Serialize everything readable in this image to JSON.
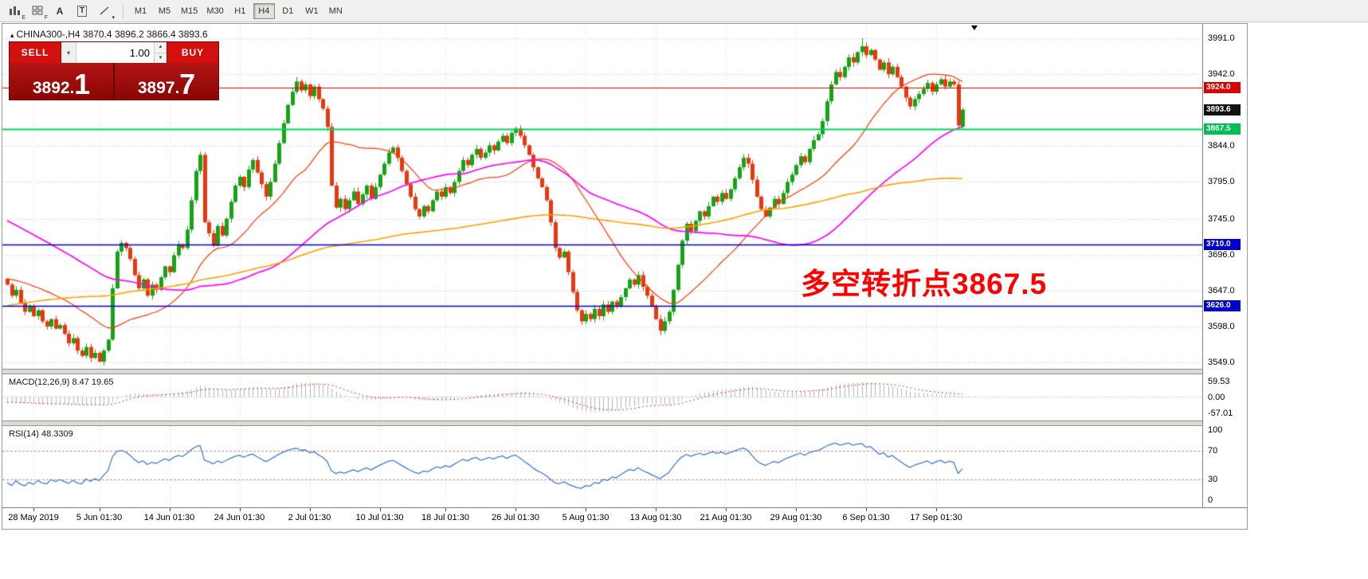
{
  "toolbar": {
    "icons": [
      {
        "name": "charts-icon",
        "char": "",
        "sub": "E"
      },
      {
        "name": "tile-windows-icon",
        "char": "",
        "sub": "F"
      },
      {
        "name": "cursor-tool-icon",
        "char": "A",
        "sub": ""
      },
      {
        "name": "text-tool-icon",
        "char": "T",
        "sub": ""
      },
      {
        "name": "drawing-tools-icon",
        "char": "",
        "sub": "▾"
      }
    ],
    "timeframes": [
      {
        "label": "M1",
        "active": false
      },
      {
        "label": "M5",
        "active": false
      },
      {
        "label": "M15",
        "active": false
      },
      {
        "label": "M30",
        "active": false
      },
      {
        "label": "H1",
        "active": false
      },
      {
        "label": "H4",
        "active": true
      },
      {
        "label": "D1",
        "active": false
      },
      {
        "label": "W1",
        "active": false
      },
      {
        "label": "MN",
        "active": false
      }
    ]
  },
  "legend": {
    "collapse_icon": "▴",
    "symbol": "CHINA300-,H4",
    "ohlc": "3870.4 3896.2 3866.4 3893.6"
  },
  "trade_panel": {
    "sell_label": "SELL",
    "buy_label": "BUY",
    "volume": "1.00",
    "caret_down": "▾",
    "spin_up": "▲",
    "spin_down": "▼",
    "dot": ".",
    "sell_price_base": "3892",
    "sell_price_big": "1",
    "buy_price_base": "3897",
    "buy_price_big": "7"
  },
  "annotation": {
    "text": "多空转折点3867.5"
  },
  "price_axis": {
    "ticks": [
      {
        "label": "3991.0",
        "price": 3991
      },
      {
        "label": "3942.0",
        "price": 3942
      },
      {
        "label": "3844.0",
        "price": 3844
      },
      {
        "label": "3795.0",
        "price": 3795
      },
      {
        "label": "3745.0",
        "price": 3745
      },
      {
        "label": "3696.0",
        "price": 3696
      },
      {
        "label": "3647.0",
        "price": 3647
      },
      {
        "label": "3598.0",
        "price": 3598
      },
      {
        "label": "3549.0",
        "price": 3549
      }
    ],
    "chips": [
      {
        "label": "3924.0",
        "price": 3924,
        "bg": "#dd0000",
        "fg": "#ffffff",
        "line": "#dd0000",
        "lw": 1.2
      },
      {
        "label": "3893.6",
        "price": 3893.6,
        "bg": "#111111",
        "fg": "#ffffff",
        "line": null,
        "lw": 0
      },
      {
        "label": "3867.5",
        "price": 3867.5,
        "bg": "#00bf55",
        "fg": "#ffffff",
        "line": "#00d45e",
        "lw": 2
      },
      {
        "label": "3710.0",
        "price": 3710,
        "bg": "#0000cc",
        "fg": "#ffffff",
        "line": "#0000cc",
        "lw": 1.6
      },
      {
        "label": "3626.0",
        "price": 3626,
        "bg": "#0000cc",
        "fg": "#ffffff",
        "line": "#0000cc",
        "lw": 1.6
      }
    ]
  },
  "macd": {
    "title": "MACD(12,26,9) 8.47 19.65",
    "axis": [
      {
        "label": "59.53",
        "v": 59.53
      },
      {
        "label": "0.00",
        "v": 0
      },
      {
        "label": "-57.01",
        "v": -57.01
      }
    ],
    "range": {
      "max": 59.53,
      "min": -57.01
    }
  },
  "rsi": {
    "title": "RSI(14) 48.3309",
    "axis": [
      {
        "label": "100",
        "v": 100
      },
      {
        "label": "70",
        "v": 70
      },
      {
        "label": "30",
        "v": 30
      },
      {
        "label": "0",
        "v": 0
      }
    ],
    "levels": [
      70,
      30
    ]
  },
  "chart_data": {
    "type": "candlestick",
    "symbol": "CHINA300-",
    "timeframe": "H4",
    "ohlc_current": {
      "open": 3870.4,
      "high": 3896.2,
      "low": 3866.4,
      "close": 3893.6
    },
    "ylim": [
      3549,
      3991
    ],
    "levels": [
      3924.0,
      3867.5,
      3710.0,
      3626.0
    ],
    "dates": [
      {
        "label": "28 May 2019",
        "i": 6
      },
      {
        "label": "5 Jun 01:30",
        "i": 21
      },
      {
        "label": "14 Jun 01:30",
        "i": 37
      },
      {
        "label": "24 Jun 01:30",
        "i": 53
      },
      {
        "label": "2 Jul 01:30",
        "i": 69
      },
      {
        "label": "10 Jul 01:30",
        "i": 85
      },
      {
        "label": "18 Jul 01:30",
        "i": 100
      },
      {
        "label": "26 Jul 01:30",
        "i": 116
      },
      {
        "label": "5 Aug 01:30",
        "i": 132
      },
      {
        "label": "13 Aug 01:30",
        "i": 148
      },
      {
        "label": "21 Aug 01:30",
        "i": 164
      },
      {
        "label": "29 Aug 01:30",
        "i": 180
      },
      {
        "label": "6 Sep 01:30",
        "i": 196
      },
      {
        "label": "17 Sep 01:30",
        "i": 212
      }
    ],
    "closes": [
      3655,
      3640,
      3648,
      3630,
      3618,
      3625,
      3612,
      3620,
      3605,
      3598,
      3608,
      3595,
      3600,
      3588,
      3575,
      3582,
      3565,
      3558,
      3570,
      3555,
      3562,
      3550,
      3565,
      3580,
      3650,
      3700,
      3712,
      3705,
      3690,
      3668,
      3650,
      3662,
      3640,
      3655,
      3648,
      3665,
      3680,
      3672,
      3695,
      3710,
      3705,
      3730,
      3770,
      3810,
      3832,
      3740,
      3725,
      3708,
      3735,
      3722,
      3745,
      3768,
      3790,
      3802,
      3788,
      3812,
      3825,
      3808,
      3792,
      3775,
      3795,
      3820,
      3848,
      3875,
      3900,
      3918,
      3932,
      3920,
      3928,
      3912,
      3925,
      3908,
      3895,
      3870,
      3790,
      3760,
      3772,
      3758,
      3770,
      3782,
      3765,
      3778,
      3790,
      3772,
      3788,
      3805,
      3820,
      3835,
      3842,
      3828,
      3810,
      3792,
      3775,
      3758,
      3748,
      3762,
      3755,
      3770,
      3782,
      3775,
      3788,
      3780,
      3795,
      3810,
      3825,
      3818,
      3832,
      3840,
      3828,
      3835,
      3845,
      3838,
      3850,
      3858,
      3848,
      3862,
      3868,
      3858,
      3845,
      3832,
      3815,
      3800,
      3788,
      3770,
      3740,
      3705,
      3692,
      3700,
      3672,
      3645,
      3620,
      3605,
      3615,
      3608,
      3622,
      3612,
      3628,
      3618,
      3632,
      3625,
      3638,
      3650,
      3662,
      3655,
      3668,
      3652,
      3640,
      3625,
      3608,
      3592,
      3605,
      3618,
      3648,
      3682,
      3715,
      3738,
      3728,
      3742,
      3755,
      3748,
      3762,
      3775,
      3768,
      3780,
      3772,
      3785,
      3800,
      3815,
      3828,
      3820,
      3798,
      3775,
      3758,
      3748,
      3760,
      3772,
      3765,
      3780,
      3795,
      3805,
      3818,
      3830,
      3822,
      3840,
      3852,
      3860,
      3878,
      3905,
      3928,
      3945,
      3938,
      3952,
      3965,
      3958,
      3972,
      3980,
      3968,
      3975,
      3962,
      3948,
      3958,
      3942,
      3952,
      3938,
      3925,
      3910,
      3898,
      3908,
      3915,
      3922,
      3930,
      3918,
      3928,
      3935,
      3925,
      3932,
      3928,
      3872,
      3893.6
    ],
    "last_candle": [
      3870.4,
      3896.2,
      3866.4,
      3893.6
    ],
    "extremes": {
      "high_index": 195,
      "high": 3991.0,
      "low_index": 21,
      "low": 3549.0
    },
    "mas": [
      {
        "period": 24,
        "color": "#ff3400",
        "width": 1.2,
        "seed_from": 3672,
        "seed_to": 3656
      },
      {
        "period": 60,
        "color": "#ff00ff",
        "width": 1.7,
        "seed_from": 3830,
        "seed_to": 3660
      },
      {
        "period": 150,
        "color": "#ffa000",
        "width": 1.6,
        "seed_from": 3480,
        "seed_to": 3770
      }
    ],
    "colors": {
      "up": "#17a317",
      "up_stroke": "#0c7a0c",
      "down": "#e8380e",
      "down_stroke": "#bf2406",
      "grid": "#c9c9c9",
      "macd_hist": "#b4b4b4",
      "macd_signal": "#e03030",
      "macd_zero": "#b0b0b0",
      "rsi_line": "#3f7cc9",
      "rsi_level": "#cc8888"
    }
  }
}
